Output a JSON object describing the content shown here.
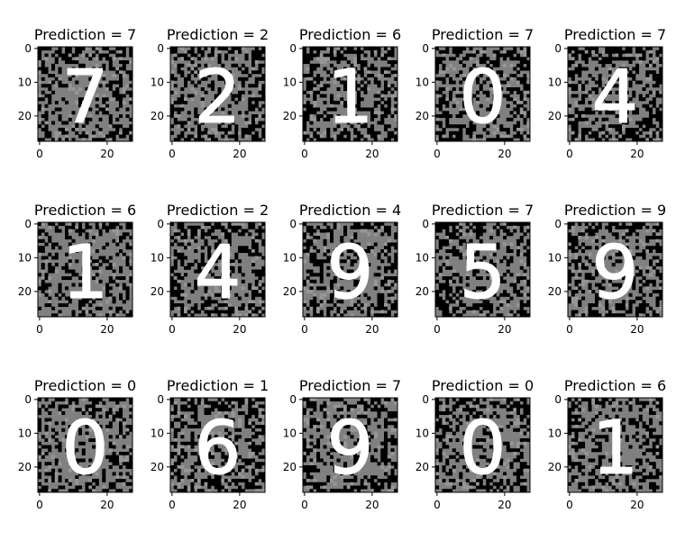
{
  "figure": {
    "colors": {
      "background": "#ffffff",
      "axis": "#000000",
      "image_background": "#808080",
      "noise_dark": "#000000",
      "noise_light": "#969696",
      "stroke": "#ffffff"
    }
  },
  "chart_data": {
    "type": "heatmap",
    "grid_rows": 3,
    "grid_cols": 5,
    "image_size": [
      28,
      28
    ],
    "colormap": "gray",
    "xticks": [
      0,
      20
    ],
    "yticks": [
      0,
      10,
      20
    ],
    "xlim": [
      -0.5,
      27.5
    ],
    "ylim": [
      27.5,
      -0.5
    ],
    "panels": [
      {
        "title": "Prediction = 7",
        "digit_shown": "7",
        "prediction": 7,
        "noise": 0.45,
        "seed": 11
      },
      {
        "title": "Prediction = 2",
        "digit_shown": "2",
        "prediction": 2,
        "noise": 0.45,
        "seed": 23
      },
      {
        "title": "Prediction = 6",
        "digit_shown": "1",
        "prediction": 6,
        "noise": 0.5,
        "seed": 37
      },
      {
        "title": "Prediction = 7",
        "digit_shown": "0",
        "prediction": 7,
        "noise": 0.48,
        "seed": 41
      },
      {
        "title": "Prediction = 7",
        "digit_shown": "4",
        "prediction": 7,
        "noise": 0.5,
        "seed": 53
      },
      {
        "title": "Prediction = 6",
        "digit_shown": "1",
        "prediction": 6,
        "noise": 0.35,
        "seed": 67
      },
      {
        "title": "Prediction = 2",
        "digit_shown": "4",
        "prediction": 2,
        "noise": 0.5,
        "seed": 71
      },
      {
        "title": "Prediction = 4",
        "digit_shown": "9",
        "prediction": 4,
        "noise": 0.45,
        "seed": 83
      },
      {
        "title": "Prediction = 7",
        "digit_shown": "5",
        "prediction": 7,
        "noise": 0.45,
        "seed": 97
      },
      {
        "title": "Prediction = 9",
        "digit_shown": "9",
        "prediction": 9,
        "noise": 0.45,
        "seed": 101
      },
      {
        "title": "Prediction = 0",
        "digit_shown": "0",
        "prediction": 0,
        "noise": 0.4,
        "seed": 113
      },
      {
        "title": "Prediction = 1",
        "digit_shown": "6",
        "prediction": 1,
        "noise": 0.5,
        "seed": 127
      },
      {
        "title": "Prediction = 7",
        "digit_shown": "9",
        "prediction": 7,
        "noise": 0.45,
        "seed": 131
      },
      {
        "title": "Prediction = 0",
        "digit_shown": "0",
        "prediction": 0,
        "noise": 0.45,
        "seed": 149
      },
      {
        "title": "Prediction = 6",
        "digit_shown": "1",
        "prediction": 6,
        "noise": 0.4,
        "seed": 157
      }
    ]
  }
}
